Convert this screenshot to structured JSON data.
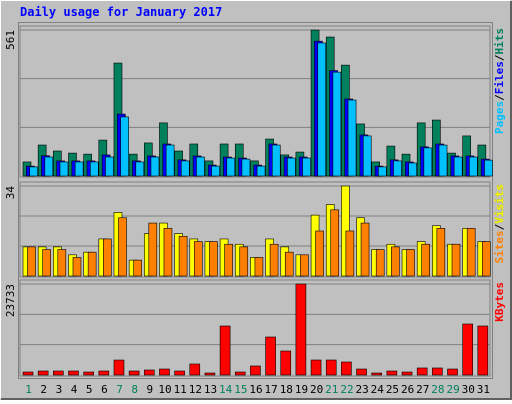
{
  "chart_data": [
    {
      "type": "bar",
      "title": "Daily usage for January 2017",
      "ylim": [
        0,
        561
      ],
      "yticks": [
        561
      ],
      "gridlines": [
        187,
        374
      ],
      "separator": "/",
      "series": [
        {
          "name": "Hits",
          "color": "#00805c",
          "values": [
            54,
            119,
            96,
            88,
            84,
            138,
            434,
            84,
            127,
            204,
            96,
            123,
            58,
            123,
            123,
            58,
            142,
            81,
            92,
            561,
            534,
            426,
            200,
            54,
            115,
            84,
            204,
            215,
            88,
            154,
            119
          ]
        },
        {
          "name": "Files",
          "color": "#0000ff",
          "values": [
            38,
            78,
            58,
            58,
            58,
            81,
            238,
            58,
            77,
            123,
            62,
            77,
            42,
            73,
            69,
            42,
            123,
            73,
            73,
            518,
            405,
            296,
            158,
            38,
            62,
            54,
            112,
            123,
            77,
            77,
            65
          ]
        },
        {
          "name": "Pages",
          "color": "#00c0ff",
          "values": [
            35,
            73,
            54,
            54,
            54,
            73,
            227,
            54,
            73,
            119,
            58,
            73,
            38,
            69,
            65,
            38,
            119,
            69,
            69,
            511,
            399,
            292,
            154,
            35,
            58,
            50,
            108,
            119,
            73,
            73,
            61
          ]
        }
      ]
    },
    {
      "type": "bar",
      "ylim": [
        0,
        34
      ],
      "yticks": [
        34
      ],
      "gridlines": [
        11.33,
        22.67
      ],
      "separator": "/",
      "series": [
        {
          "name": "Visits",
          "color": "#ffff00",
          "values": [
            11,
            11,
            11,
            8,
            9,
            14,
            24,
            6,
            16,
            20,
            16,
            14,
            13,
            14,
            12,
            7,
            14,
            11,
            8,
            23,
            27,
            34,
            22,
            10,
            12,
            10,
            13,
            19,
            12,
            18,
            13
          ]
        },
        {
          "name": "Sites",
          "color": "#ff8000",
          "values": [
            11,
            10,
            10,
            7,
            9,
            14,
            22,
            6,
            20,
            18,
            15,
            13,
            13,
            12,
            11,
            7,
            12,
            9,
            8,
            17,
            25,
            17,
            20,
            10,
            11,
            10,
            12,
            18,
            12,
            18,
            13
          ]
        }
      ]
    },
    {
      "type": "bar",
      "ylim": [
        0,
        23733
      ],
      "yticks": [
        23733
      ],
      "gridlines": [
        7911,
        15822
      ],
      "categories": [
        "1",
        "2",
        "3",
        "4",
        "5",
        "6",
        "7",
        "8",
        "9",
        "10",
        "11",
        "12",
        "13",
        "14",
        "15",
        "16",
        "17",
        "18",
        "19",
        "20",
        "21",
        "22",
        "23",
        "24",
        "25",
        "26",
        "27",
        "28",
        "29",
        "30",
        "31"
      ],
      "highlight_categories": [
        0,
        6,
        7,
        13,
        14,
        20,
        21,
        27,
        28
      ],
      "highlight_color": "#00805c",
      "series": [
        {
          "name": "KBytes",
          "color": "#ff0000",
          "values": [
            780,
            1040,
            1040,
            1040,
            780,
            1040,
            3900,
            1040,
            1300,
            1560,
            1040,
            2870,
            520,
            12780,
            780,
            2350,
            9910,
            6260,
            23733,
            3910,
            3910,
            3390,
            1560,
            520,
            1040,
            780,
            1830,
            1830,
            1560,
            13300,
            12780
          ]
        }
      ]
    }
  ]
}
